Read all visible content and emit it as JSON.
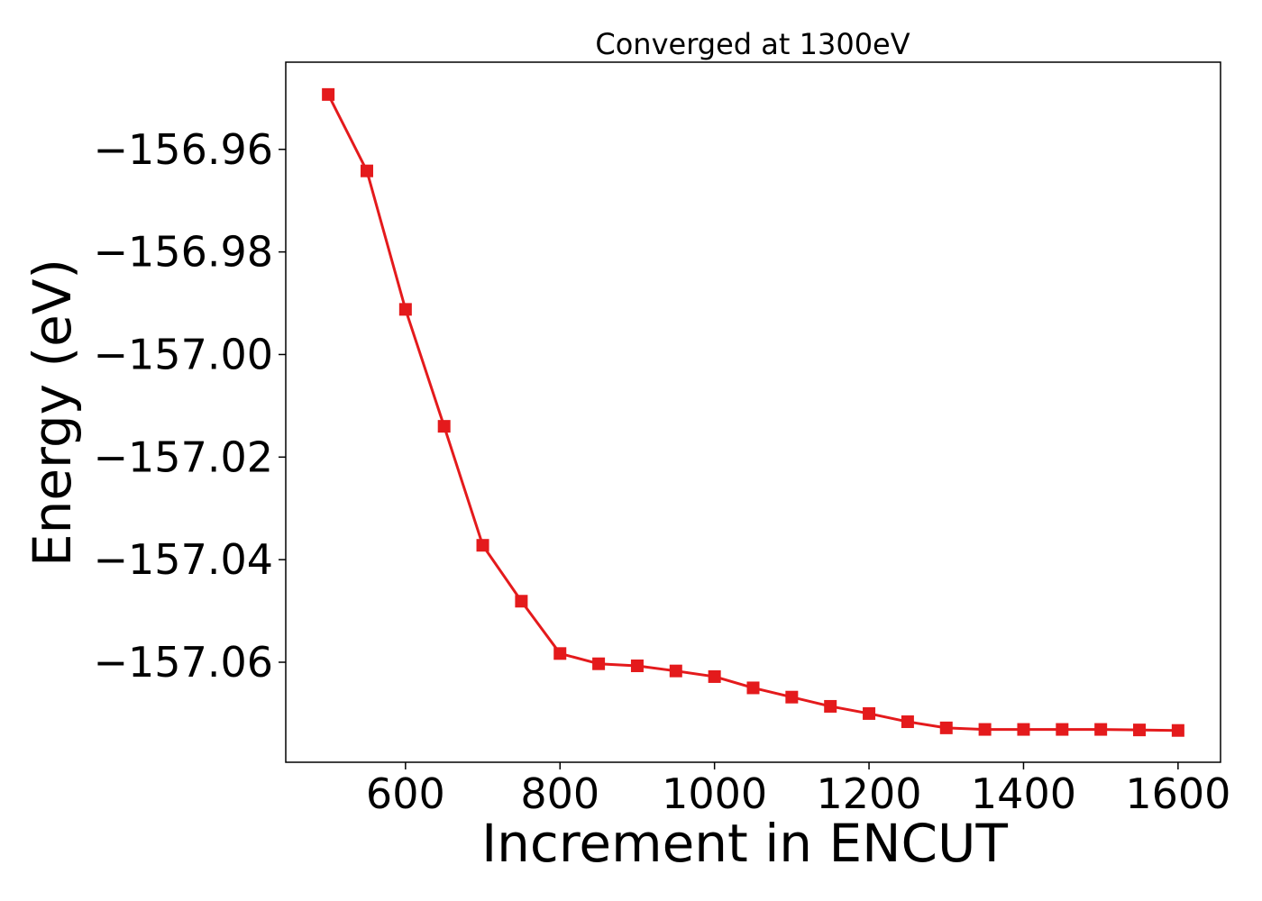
{
  "chart_data": {
    "type": "line",
    "title": "Converged at 1300eV",
    "xlabel": "Increment in ENCUT",
    "ylabel": "Energy (eV)",
    "xlim": [
      445,
      1655
    ],
    "ylim": [
      -157.0795,
      -156.943
    ],
    "xticks": [
      600,
      800,
      1000,
      1200,
      1400,
      1600
    ],
    "xtick_labels": [
      "600",
      "800",
      "1000",
      "1200",
      "1400",
      "1600"
    ],
    "yticks": [
      -156.96,
      -156.98,
      -157.0,
      -157.02,
      -157.04,
      -157.06
    ],
    "ytick_labels": [
      "−156.96",
      "−156.98",
      "−157.00",
      "−157.02",
      "−157.04",
      "−157.06"
    ],
    "grid": false,
    "series": [
      {
        "color": "#e41a1c",
        "marker": "square",
        "x": [
          500,
          550,
          600,
          650,
          700,
          750,
          800,
          850,
          900,
          950,
          1000,
          1050,
          1100,
          1150,
          1200,
          1250,
          1300,
          1350,
          1400,
          1450,
          1500,
          1550,
          1600
        ],
        "y": [
          -156.9493,
          -156.9642,
          -156.9912,
          -157.014,
          -157.0372,
          -157.0481,
          -157.0583,
          -157.0603,
          -157.0607,
          -157.0617,
          -157.0628,
          -157.065,
          -157.0668,
          -157.0686,
          -157.07,
          -157.0716,
          -157.0728,
          -157.0731,
          -157.0731,
          -157.0731,
          -157.0731,
          -157.0732,
          -157.0733
        ]
      }
    ]
  }
}
